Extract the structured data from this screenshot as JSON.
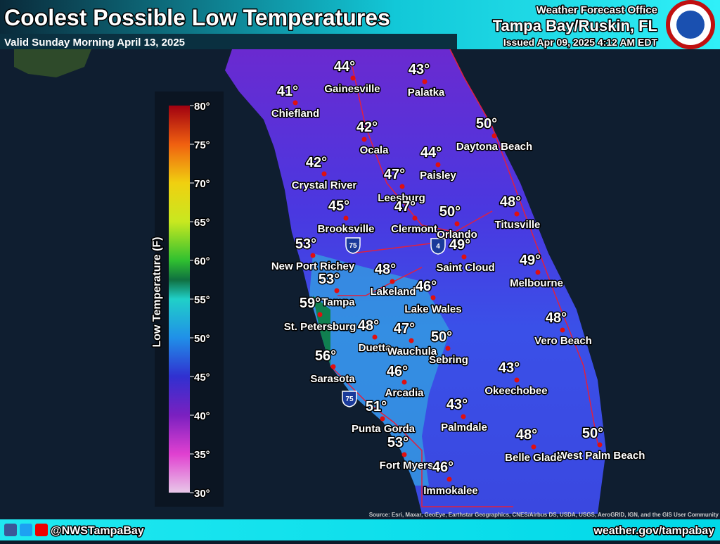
{
  "header": {
    "title": "Coolest Possible Low Temperatures",
    "subtitle": "Valid Sunday Morning April 13, 2025",
    "office": "Weather Forecast Office",
    "location": "Tampa Bay/Ruskin, FL",
    "issued": "Issued Apr 09, 2025 4:12 AM EDT"
  },
  "legend": {
    "label": "Low Temperature (F)",
    "ticks": [
      "80°",
      "75°",
      "70°",
      "65°",
      "60°",
      "55°",
      "50°",
      "45°",
      "40°",
      "35°",
      "30°"
    ]
  },
  "cities": [
    {
      "name": "Gainesville",
      "temp": "44°"
    },
    {
      "name": "Palatka",
      "temp": "43°"
    },
    {
      "name": "Chiefland",
      "temp": "41°"
    },
    {
      "name": "Ocala",
      "temp": "42°"
    },
    {
      "name": "Daytona Beach",
      "temp": "50°"
    },
    {
      "name": "Paisley",
      "temp": "44°"
    },
    {
      "name": "Crystal River",
      "temp": "42°"
    },
    {
      "name": "Leesburg",
      "temp": "47°"
    },
    {
      "name": "Clermont",
      "temp": "47°"
    },
    {
      "name": "Orlando",
      "temp": "50°"
    },
    {
      "name": "Titusville",
      "temp": "48°"
    },
    {
      "name": "Brooksville",
      "temp": "45°"
    },
    {
      "name": "Saint Cloud",
      "temp": "49°"
    },
    {
      "name": "New Port Richey",
      "temp": "53°"
    },
    {
      "name": "Melbourne",
      "temp": "49°"
    },
    {
      "name": "Lakeland",
      "temp": "48°"
    },
    {
      "name": "Tampa",
      "temp": "53°"
    },
    {
      "name": "Lake Wales",
      "temp": "46°"
    },
    {
      "name": "St. Petersburg",
      "temp": "59°"
    },
    {
      "name": "Vero Beach",
      "temp": "48°"
    },
    {
      "name": "Duette",
      "temp": "48°"
    },
    {
      "name": "Wauchula",
      "temp": "47°"
    },
    {
      "name": "Sebring",
      "temp": "50°"
    },
    {
      "name": "Sarasota",
      "temp": "56°"
    },
    {
      "name": "Arcadia",
      "temp": "46°"
    },
    {
      "name": "Okeechobee",
      "temp": "43°"
    },
    {
      "name": "Punta Gorda",
      "temp": "51°"
    },
    {
      "name": "Palmdale",
      "temp": "43°"
    },
    {
      "name": "West Palm Beach",
      "temp": "50°"
    },
    {
      "name": "Belle Glade",
      "temp": "48°"
    },
    {
      "name": "Fort Myers",
      "temp": "53°"
    },
    {
      "name": "Immokalee",
      "temp": "46°"
    }
  ],
  "shields": [
    "75",
    "4",
    "75"
  ],
  "source": "Source: Esri, Maxar, GeoEye, Earthstar Geographics, CNES/Airbus DS, USDA, USGS, AeroGRID, IGN, and the GIS User Community",
  "footer": {
    "social": "@NWSTampaBay",
    "website": "weather.gov/tampabay"
  }
}
